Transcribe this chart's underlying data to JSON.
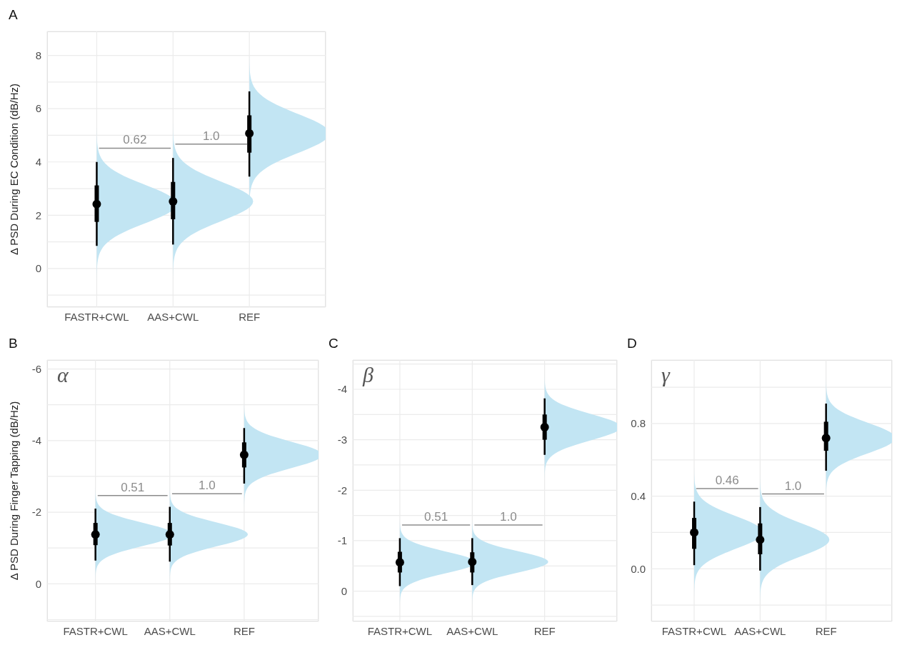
{
  "chart_data": [
    {
      "type": "box",
      "title": "A",
      "ylabel": "Δ PSD During EC Condition (dB/Hz)",
      "categories": [
        "FASTR+CWL",
        "AAS+CWL",
        "REF"
      ],
      "color": "#000000",
      "ylim": [
        -1.45,
        8.9
      ],
      "yticks": [
        {
          "value": -1,
          "label": null
        },
        0,
        {
          "value": 1,
          "label": null
        },
        2,
        {
          "value": 3,
          "label": null
        },
        4,
        {
          "value": 5,
          "label": null
        },
        6,
        {
          "value": 7,
          "label": null
        },
        8
      ],
      "grid": true,
      "boxes": [
        {
          "low": 0.85,
          "q1": 1.75,
          "median": 2.42,
          "q3": 3.12,
          "high": 4.0
        },
        {
          "low": 0.9,
          "q1": 1.85,
          "median": 2.52,
          "q3": 3.25,
          "high": 4.15
        },
        {
          "low": 3.45,
          "q1": 4.35,
          "median": 5.07,
          "q3": 5.75,
          "high": 6.65
        }
      ],
      "annotations": [
        "0.62",
        "1.0"
      ]
    },
    {
      "type": "box",
      "title": "B",
      "subtitle": "α",
      "ylabel": "Δ PSD During Finger Tapping (dB/Hz)",
      "categories": [
        "FASTR+CWL",
        "AAS+CWL",
        "REF"
      ],
      "color": "#000000",
      "ylim": [
        1.05,
        -6.25
      ],
      "yticks": [
        {
          "value": 1,
          "label": null
        },
        0,
        {
          "value": -1,
          "label": null
        },
        -2,
        {
          "value": -3,
          "label": null
        },
        -4,
        {
          "value": -5,
          "label": null
        },
        -6
      ],
      "grid": true,
      "boxes": [
        {
          "low": -2.1,
          "q1": -1.7,
          "median": -1.38,
          "q3": -1.08,
          "high": -0.65
        },
        {
          "low": -2.15,
          "q1": -1.7,
          "median": -1.38,
          "q3": -1.07,
          "high": -0.62
        },
        {
          "low": -4.35,
          "q1": -3.95,
          "median": -3.6,
          "q3": -3.25,
          "high": -2.8
        }
      ],
      "annotations": [
        "0.51",
        "1.0"
      ]
    },
    {
      "type": "box",
      "title": "C",
      "subtitle": "β",
      "categories": [
        "FASTR+CWL",
        "AAS+CWL",
        "REF"
      ],
      "color": "#000000",
      "ylim": [
        0.6,
        -4.58
      ],
      "yticks": [
        {
          "value": 0.5,
          "label": null
        },
        0,
        {
          "value": -0.5,
          "label": null
        },
        -1,
        {
          "value": -1.5,
          "label": null
        },
        -2,
        {
          "value": -2.5,
          "label": null
        },
        -3,
        {
          "value": -3.5,
          "label": null
        },
        -4,
        {
          "value": -4.5,
          "label": null
        }
      ],
      "grid": true,
      "boxes": [
        {
          "low": -1.05,
          "q1": -0.78,
          "median": -0.57,
          "q3": -0.37,
          "high": -0.1
        },
        {
          "low": -1.05,
          "q1": -0.77,
          "median": -0.58,
          "q3": -0.37,
          "high": -0.12
        },
        {
          "low": -3.82,
          "q1": -3.5,
          "median": -3.25,
          "q3": -3.0,
          "high": -2.7
        }
      ],
      "annotations": [
        "0.51",
        "1.0"
      ]
    },
    {
      "type": "box",
      "title": "D",
      "subtitle": "γ",
      "categories": [
        "FASTR+CWL",
        "AAS+CWL",
        "REF"
      ],
      "color": "#000000",
      "ylim": [
        -0.29,
        1.15
      ],
      "yticks": [
        {
          "value": -0.2,
          "label": null
        },
        {
          "value": 0,
          "label": "0.0"
        },
        {
          "value": 0.2,
          "label": null
        },
        {
          "value": 0.4,
          "label": "0.4"
        },
        {
          "value": 0.6,
          "label": null
        },
        {
          "value": 0.8,
          "label": "0.8"
        },
        {
          "value": 1.0,
          "label": null
        }
      ],
      "grid": true,
      "boxes": [
        {
          "low": 0.02,
          "q1": 0.11,
          "median": 0.2,
          "q3": 0.28,
          "high": 0.37
        },
        {
          "low": -0.01,
          "q1": 0.08,
          "median": 0.16,
          "q3": 0.25,
          "high": 0.34
        },
        {
          "low": 0.54,
          "q1": 0.65,
          "median": 0.72,
          "q3": 0.81,
          "high": 0.91
        }
      ],
      "annotations": [
        "0.46",
        "1.0"
      ]
    }
  ]
}
